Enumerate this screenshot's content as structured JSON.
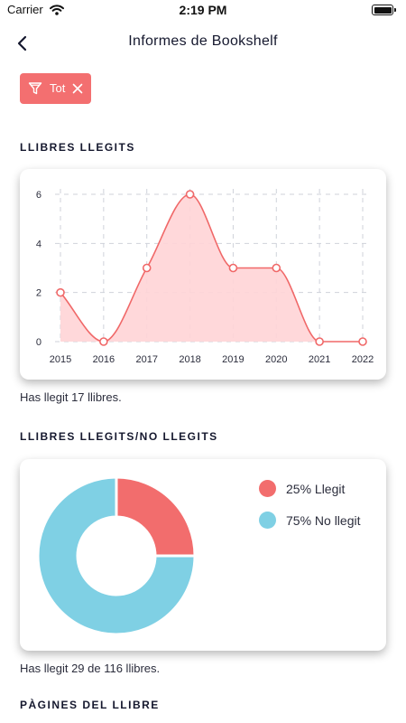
{
  "status_bar": {
    "carrier": "Carrier",
    "time": "2:19 PM"
  },
  "header": {
    "title": "Informes de Bookshelf",
    "back_icon": "chevron-left-icon"
  },
  "filter": {
    "label": "Tot",
    "icon": "filter-icon",
    "close_icon": "close-icon",
    "color": "#f36f70"
  },
  "sections": {
    "read": {
      "title": "LLIBRES LLEGITS",
      "caption": "Has llegit 17 llibres."
    },
    "read_unread": {
      "title": "LLIBRES LLEGITS/NO LLEGITS",
      "caption": "Has llegit 29 de 116 llibres.",
      "legend": [
        {
          "label": "25% Llegit",
          "color": "#f26d6d"
        },
        {
          "label": "75% No llegit",
          "color": "#7fd0e4"
        }
      ]
    },
    "pages": {
      "title": "PÀGINES DEL LLIBRE"
    }
  },
  "chart_data": [
    {
      "type": "area",
      "x": [
        "2015",
        "2016",
        "2017",
        "2018",
        "2019",
        "2020",
        "2021",
        "2022"
      ],
      "values": [
        2,
        0,
        3,
        6,
        3,
        3,
        0,
        0
      ],
      "yticks": [
        "0",
        "2",
        "4",
        "6"
      ],
      "ylim": [
        0,
        6
      ],
      "grid": true,
      "line_color": "#f06868",
      "fill_color": "#ffd4d6"
    },
    {
      "type": "pie",
      "labels": [
        "Llegit",
        "No llegit"
      ],
      "values": [
        25,
        75
      ],
      "colors": [
        "#f26d6d",
        "#7fd0e4"
      ]
    }
  ]
}
